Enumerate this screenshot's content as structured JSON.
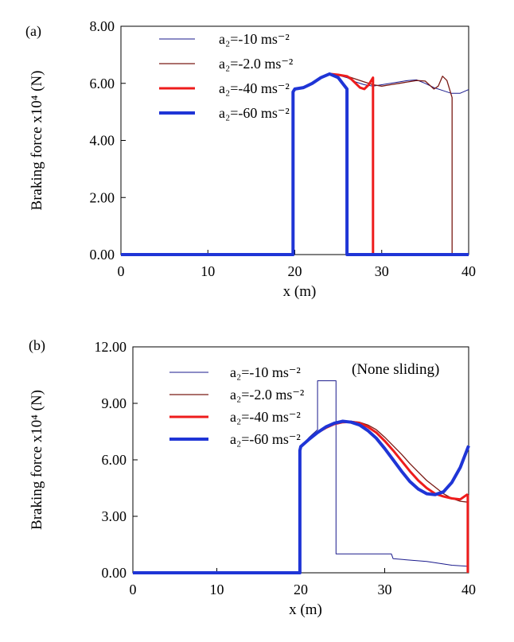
{
  "chart_data": [
    {
      "type": "line",
      "panel_label": "(a)",
      "note": "",
      "xlabel": "x (m)",
      "ylabel": "Braking force x10⁴ (N)",
      "xlim": [
        0,
        40
      ],
      "ylim": [
        0,
        8
      ],
      "xticks": [
        "0",
        "10",
        "20",
        "30",
        "40"
      ],
      "yticks": [
        "0.00",
        "2.00",
        "4.00",
        "6.00",
        "8.00"
      ],
      "grid": false,
      "legend_position": "top-left",
      "series": [
        {
          "name": "a₂=-10 ms⁻²",
          "color": "#1a1a8c",
          "width": 1,
          "x": [
            0,
            19.8,
            19.8,
            20,
            21,
            22,
            23,
            24,
            25,
            26,
            27,
            28,
            29,
            30,
            31,
            32,
            33,
            34,
            35,
            36,
            37,
            38,
            39,
            40
          ],
          "y": [
            0,
            0,
            5.7,
            5.8,
            5.85,
            6.0,
            6.2,
            6.3,
            6.28,
            6.2,
            6.05,
            5.95,
            5.9,
            5.95,
            6.0,
            6.05,
            6.1,
            6.12,
            6.0,
            5.85,
            5.75,
            5.65,
            5.65,
            5.78
          ]
        },
        {
          "name": "a₂=-2.0 ms⁻²",
          "color": "#7a1a14",
          "width": 1.3,
          "x": [
            0,
            19.8,
            19.8,
            20,
            21,
            22,
            23,
            24,
            25,
            26,
            27,
            28,
            29,
            30,
            31,
            32,
            33,
            34,
            35,
            36,
            36.5,
            37,
            37.5,
            38,
            38.1,
            38.1,
            40
          ],
          "y": [
            0,
            0,
            5.7,
            5.8,
            5.85,
            6.0,
            6.2,
            6.3,
            6.3,
            6.25,
            6.15,
            6.05,
            5.95,
            5.9,
            5.95,
            6.0,
            6.05,
            6.1,
            6.08,
            5.8,
            5.9,
            6.25,
            6.1,
            5.6,
            5.5,
            0,
            0
          ]
        },
        {
          "name": "a₂=-40 ms⁻²",
          "color": "#ee1c1c",
          "width": 3,
          "x": [
            0,
            19.8,
            19.8,
            20,
            21,
            22,
            23,
            24,
            25,
            26,
            26.5,
            27,
            27.5,
            28,
            28.5,
            29,
            29,
            40
          ],
          "y": [
            0,
            0,
            5.7,
            5.8,
            5.85,
            6.0,
            6.2,
            6.33,
            6.3,
            6.25,
            6.15,
            6.0,
            5.85,
            5.8,
            5.95,
            6.2,
            0,
            0
          ]
        },
        {
          "name": "a₂=-60 ms⁻²",
          "color": "#1f35d6",
          "width": 4,
          "x": [
            0,
            19.8,
            19.8,
            20,
            21,
            22,
            23,
            24,
            25,
            25.5,
            26,
            26,
            40
          ],
          "y": [
            0,
            0,
            5.7,
            5.8,
            5.85,
            6.0,
            6.2,
            6.33,
            6.2,
            6.0,
            5.8,
            0,
            0
          ]
        }
      ]
    },
    {
      "type": "line",
      "panel_label": "(b)",
      "note": "(None sliding)",
      "xlabel": "x (m)",
      "ylabel": "Braking force x10⁴ (N)",
      "xlim": [
        0,
        40
      ],
      "ylim": [
        0,
        12
      ],
      "xticks": [
        "0",
        "10",
        "20",
        "30",
        "40"
      ],
      "yticks": [
        "0.00",
        "3.00",
        "6.00",
        "9.00",
        "12.00"
      ],
      "grid": false,
      "legend_position": "top-left",
      "series": [
        {
          "name": "a₂=-10 ms⁻²",
          "color": "#1a1a8c",
          "width": 1,
          "x": [
            0,
            19.9,
            19.9,
            20,
            21,
            22,
            22,
            24.2,
            24.2,
            30.8,
            31,
            35,
            38,
            39.8
          ],
          "y": [
            0,
            0,
            6.5,
            6.7,
            7.2,
            7.6,
            10.2,
            10.2,
            1.0,
            1.0,
            0.75,
            0.6,
            0.4,
            0.35
          ]
        },
        {
          "name": "a₂=-2.0 ms⁻²",
          "color": "#7a1a14",
          "width": 1.3,
          "x": [
            0,
            19.9,
            19.9,
            20,
            21,
            22,
            23,
            24,
            25,
            26,
            27,
            28,
            29,
            30,
            31,
            32,
            33,
            34,
            35,
            36,
            37,
            38,
            39,
            40
          ],
          "y": [
            0,
            0,
            6.5,
            6.7,
            7.1,
            7.45,
            7.7,
            7.9,
            8.0,
            8.05,
            8.0,
            7.85,
            7.6,
            7.2,
            6.75,
            6.3,
            5.8,
            5.35,
            4.9,
            4.55,
            4.2,
            3.95,
            3.8,
            3.75
          ]
        },
        {
          "name": "a₂=-40 ms⁻²",
          "color": "#ee1c1c",
          "width": 3,
          "x": [
            0,
            19.9,
            19.9,
            20,
            21,
            22,
            23,
            24,
            25,
            26,
            27,
            28,
            29,
            30,
            31,
            32,
            33,
            34,
            35,
            36,
            37,
            38,
            39,
            39.8,
            39.9,
            39.9
          ],
          "y": [
            0,
            0,
            6.5,
            6.7,
            7.1,
            7.45,
            7.7,
            7.9,
            8.0,
            8.02,
            7.95,
            7.75,
            7.45,
            7.0,
            6.5,
            5.95,
            5.4,
            4.9,
            4.5,
            4.2,
            4.05,
            3.95,
            3.9,
            4.15,
            4.1,
            0
          ]
        },
        {
          "name": "a₂=-60 ms⁻²",
          "color": "#1f35d6",
          "width": 4,
          "x": [
            0,
            19.9,
            19.9,
            20,
            21,
            22,
            23,
            24,
            25,
            26,
            27,
            28,
            29,
            30,
            31,
            32,
            33,
            34,
            35,
            36,
            37,
            38,
            39,
            40
          ],
          "y": [
            0,
            0,
            6.5,
            6.7,
            7.1,
            7.45,
            7.75,
            7.95,
            8.05,
            8.0,
            7.85,
            7.55,
            7.15,
            6.6,
            6.0,
            5.4,
            4.85,
            4.45,
            4.2,
            4.15,
            4.3,
            4.8,
            5.6,
            6.75
          ]
        }
      ]
    }
  ]
}
